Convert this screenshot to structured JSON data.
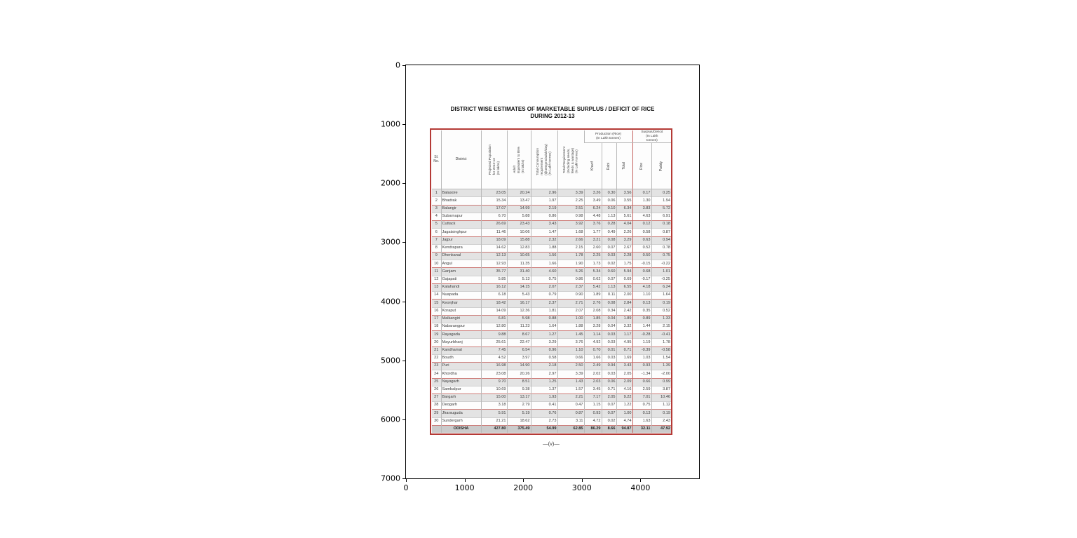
{
  "figure": {
    "y_ticks": [
      "0",
      "1000",
      "2000",
      "3000",
      "4000",
      "5000",
      "6000",
      "7000"
    ],
    "x_ticks": [
      "0",
      "1000",
      "2000",
      "3000",
      "4000"
    ],
    "frame_color": "#000000"
  },
  "document": {
    "title_line1": "DISTRICT WISE ESTIMATES OF MARKETABLE SURPLUS / DEFICIT OF RICE",
    "title_line2": "DURING 2012-13",
    "page_marker": "—(v)—",
    "border_color": "#b43a36",
    "stripe_color": "#e3e3e3"
  },
  "chart_data": {
    "type": "table",
    "title": "DISTRICT WISE ESTIMATES OF MARKETABLE SURPLUS / DEFICIT OF RICE DURING 2012-13",
    "header": {
      "sl_no": "Sl.\nNo.",
      "district": "District",
      "population": "Projected Population\nfor 2012-13\n(In lakhs)",
      "adult": "Adult\nEquivalent to 85%\n(In lakhs)",
      "consumption": "Total Consumption\nrequirement\n(@400gms/adult/day)\n(In Lakh tonnes)",
      "requirement": "Total Requirement\n(Including seeds,\nfeeds & wastage)\n(In Lakh tonnes)",
      "production_group": "Production (Rice)\n(In Lakh tonnes)",
      "kharif": "Kharif",
      "rabi": "Rabi",
      "total": "Total",
      "surplus_group": "Surplus/Deficit\n(In Lakh\ntonnes)",
      "rice": "Rice",
      "paddy": "Paddy"
    },
    "columns": [
      "Sl. No.",
      "District",
      "Projected Population for 2012-13 (In lakhs)",
      "Adult Equivalent to 85% (In lakhs)",
      "Total Consumption requirement (@400gms/adult/day) (In Lakh tonnes)",
      "Total Requirement (Including seeds, feeds & wastage) (In Lakh tonnes)",
      "Kharif",
      "Rabi",
      "Total",
      "Rice",
      "Paddy"
    ],
    "rows": [
      [
        "1",
        "Balasore",
        "23.05",
        "20.24",
        "2.96",
        "3.39",
        "3.26",
        "0.30",
        "3.56",
        "0.17",
        "0.25"
      ],
      [
        "2",
        "Bhadrak",
        "15.34",
        "13.47",
        "1.97",
        "2.25",
        "3.49",
        "0.06",
        "3.55",
        "1.30",
        "1.94"
      ],
      [
        "3",
        "Balangir",
        "17.07",
        "14.99",
        "2.19",
        "2.51",
        "6.24",
        "0.10",
        "6.34",
        "3.83",
        "5.72"
      ],
      [
        "4",
        "Subarnapur",
        "6.70",
        "5.88",
        "0.86",
        "0.98",
        "4.48",
        "1.13",
        "5.61",
        "4.63",
        "6.91"
      ],
      [
        "5",
        "Cuttack",
        "26.69",
        "23.43",
        "3.43",
        "3.92",
        "3.76",
        "0.28",
        "4.04",
        "0.12",
        "0.18"
      ],
      [
        "6",
        "Jagatsinghpur",
        "11.46",
        "10.06",
        "1.47",
        "1.68",
        "1.77",
        "0.49",
        "2.26",
        "0.58",
        "0.87"
      ],
      [
        "7",
        "Jajpur",
        "18.09",
        "15.88",
        "2.32",
        "2.66",
        "3.21",
        "0.08",
        "3.29",
        "0.63",
        "0.94"
      ],
      [
        "8",
        "Kendrapara",
        "14.62",
        "12.83",
        "1.88",
        "2.15",
        "2.60",
        "0.07",
        "2.67",
        "0.52",
        "0.78"
      ],
      [
        "9",
        "Dhenkanal",
        "12.13",
        "10.65",
        "1.56",
        "1.78",
        "2.25",
        "0.03",
        "2.28",
        "0.50",
        "0.75"
      ],
      [
        "10",
        "Angul",
        "12.93",
        "11.35",
        "1.66",
        "1.90",
        "1.73",
        "0.02",
        "1.75",
        "-0.15",
        "-0.22"
      ],
      [
        "11",
        "Ganjam",
        "35.77",
        "31.40",
        "4.60",
        "5.26",
        "5.34",
        "0.60",
        "5.94",
        "0.68",
        "1.01"
      ],
      [
        "12",
        "Gajapati",
        "5.85",
        "5.13",
        "0.75",
        "0.86",
        "0.62",
        "0.07",
        "0.69",
        "-0.17",
        "-0.25"
      ],
      [
        "13",
        "Kalahandi",
        "16.12",
        "14.15",
        "2.07",
        "2.37",
        "5.42",
        "1.13",
        "6.55",
        "4.18",
        "6.24"
      ],
      [
        "14",
        "Nuapada",
        "6.18",
        "5.43",
        "0.79",
        "0.90",
        "1.89",
        "0.11",
        "2.00",
        "1.10",
        "1.64"
      ],
      [
        "15",
        "Keonjhar",
        "18.42",
        "16.17",
        "2.37",
        "2.71",
        "2.76",
        "0.08",
        "2.84",
        "0.13",
        "0.19"
      ],
      [
        "16",
        "Koraput",
        "14.09",
        "12.36",
        "1.81",
        "2.07",
        "2.08",
        "0.34",
        "2.42",
        "0.35",
        "0.52"
      ],
      [
        "17",
        "Malkangiri",
        "6.81",
        "5.98",
        "0.88",
        "1.00",
        "1.85",
        "0.04",
        "1.89",
        "0.89",
        "1.33"
      ],
      [
        "18",
        "Nabarangpur",
        "12.80",
        "11.23",
        "1.64",
        "1.88",
        "3.28",
        "0.04",
        "3.32",
        "1.44",
        "2.15"
      ],
      [
        "19",
        "Rayagada",
        "9.88",
        "8.67",
        "1.27",
        "1.45",
        "1.14",
        "0.03",
        "1.17",
        "-0.28",
        "-0.41"
      ],
      [
        "20",
        "Mayurbhanj",
        "25.61",
        "22.47",
        "3.29",
        "3.76",
        "4.92",
        "0.03",
        "4.95",
        "1.19",
        "1.78"
      ],
      [
        "21",
        "Kandhamal",
        "7.45",
        "6.54",
        "0.96",
        "1.10",
        "0.70",
        "0.01",
        "0.71",
        "-0.39",
        "-0.58"
      ],
      [
        "22",
        "Boudh",
        "4.52",
        "3.97",
        "0.58",
        "0.66",
        "1.66",
        "0.03",
        "1.69",
        "1.03",
        "1.54"
      ],
      [
        "23",
        "Puri",
        "16.98",
        "14.90",
        "2.18",
        "2.50",
        "2.49",
        "0.94",
        "3.43",
        "0.93",
        "1.39"
      ],
      [
        "24",
        "Khordha",
        "23.08",
        "20.26",
        "2.97",
        "3.39",
        "2.02",
        "0.03",
        "2.05",
        "-1.34",
        "-2.00"
      ],
      [
        "25",
        "Nayagarh",
        "9.70",
        "8.51",
        "1.25",
        "1.43",
        "2.03",
        "0.06",
        "2.09",
        "0.66",
        "0.99"
      ],
      [
        "26",
        "Sambalpur",
        "10.69",
        "9.38",
        "1.37",
        "1.57",
        "3.45",
        "0.71",
        "4.16",
        "2.59",
        "3.87"
      ],
      [
        "27",
        "Bargarh",
        "15.00",
        "13.17",
        "1.93",
        "2.21",
        "7.17",
        "2.05",
        "9.22",
        "7.01",
        "10.46"
      ],
      [
        "28",
        "Deogarh",
        "3.18",
        "2.79",
        "0.41",
        "0.47",
        "1.15",
        "0.07",
        "1.22",
        "0.75",
        "1.12"
      ],
      [
        "29",
        "Jharsuguda",
        "5.91",
        "5.19",
        "0.76",
        "0.87",
        "0.93",
        "0.07",
        "1.00",
        "0.13",
        "0.19"
      ],
      [
        "30",
        "Sundergarh",
        "21.21",
        "18.62",
        "2.73",
        "3.11",
        "4.72",
        "0.02",
        "4.74",
        "1.63",
        "2.43"
      ]
    ],
    "total_row": [
      "",
      "ODISHA",
      "427.80",
      "375.49",
      "54.99",
      "62.85",
      "86.29",
      "8.66",
      "94.87",
      "32.11",
      "47.92"
    ]
  }
}
